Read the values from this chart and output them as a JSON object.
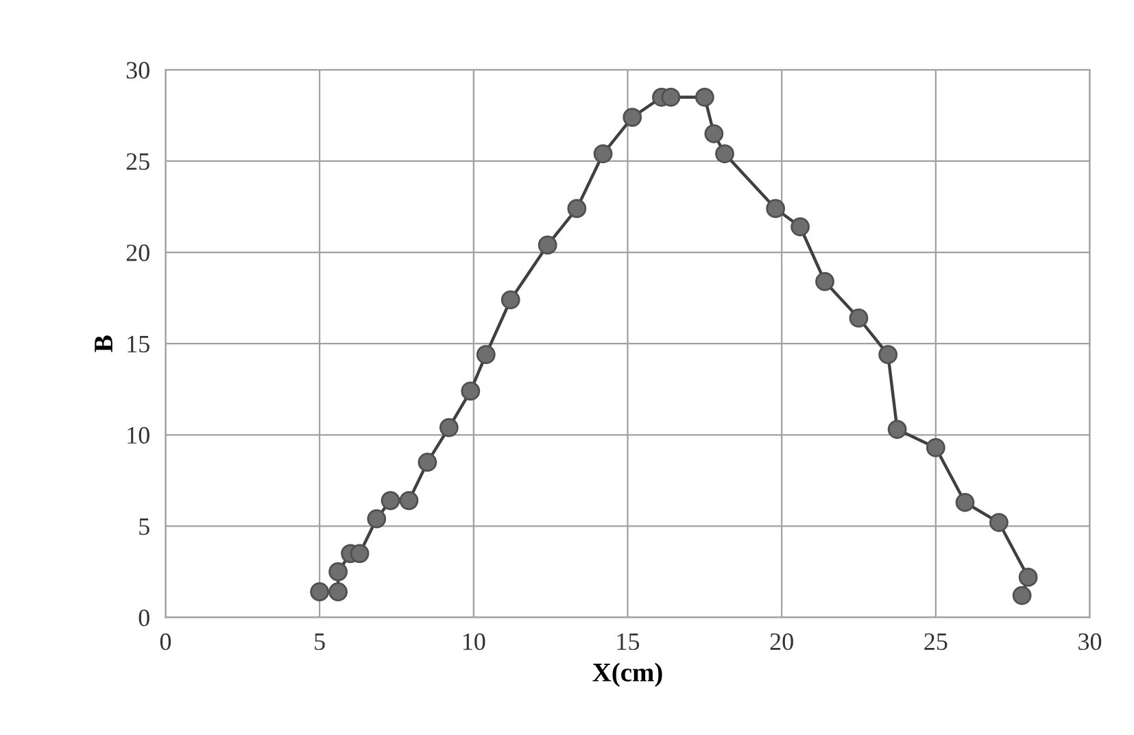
{
  "chart_data": {
    "type": "line",
    "xlabel": "X(cm)",
    "ylabel": "B",
    "x": [
      5.0,
      5.6,
      5.6,
      6.0,
      6.3,
      6.85,
      7.3,
      7.9,
      8.5,
      9.2,
      9.9,
      10.4,
      11.2,
      12.4,
      13.35,
      14.2,
      15.15,
      16.1,
      16.4,
      17.5,
      17.8,
      18.15,
      19.8,
      20.6,
      21.4,
      22.5,
      23.45,
      23.75,
      25.0,
      25.95,
      27.05,
      28.0,
      27.8
    ],
    "series": [
      {
        "color": "#6e6e6e",
        "values": [
          1.4,
          1.4,
          2.5,
          3.5,
          3.5,
          5.4,
          6.4,
          6.4,
          8.5,
          10.4,
          12.4,
          14.4,
          17.4,
          20.4,
          22.4,
          25.4,
          27.4,
          28.5,
          28.5,
          28.5,
          26.5,
          25.4,
          22.4,
          21.4,
          18.4,
          16.4,
          14.4,
          10.3,
          9.3,
          6.3,
          5.2,
          2.2,
          1.2
        ]
      }
    ],
    "xlim": [
      0,
      30
    ],
    "ylim": [
      0,
      30
    ],
    "xticks": [
      0,
      5,
      10,
      15,
      20,
      25,
      30
    ],
    "yticks": [
      0,
      5,
      10,
      15,
      20,
      25,
      30
    ],
    "grid": true,
    "marker": "circle",
    "line_style": "solid"
  }
}
